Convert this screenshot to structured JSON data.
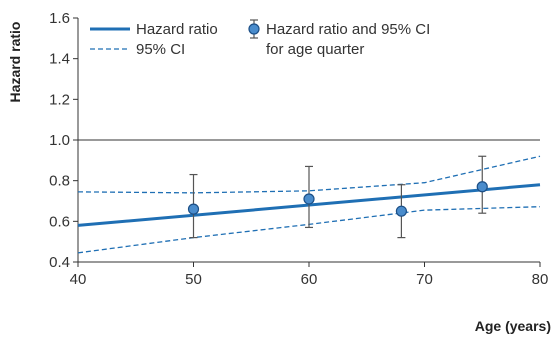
{
  "chart_data": {
    "type": "line",
    "xlabel": "Age (years)",
    "ylabel": "Hazard ratio",
    "xlim": [
      40,
      80
    ],
    "ylim": [
      0.4,
      1.6
    ],
    "x_ticks": [
      40,
      50,
      60,
      70,
      80
    ],
    "y_ticks": [
      "0.4",
      "0.6",
      "0.8",
      "1.0",
      "1.2",
      "1.4",
      "1.6"
    ],
    "reference_line": 1.0,
    "grid": false,
    "colors": {
      "line": "#1f6fb4",
      "point_fill": "#4a8ccc",
      "point_stroke": "#1c4f86",
      "errorbar": "#555555",
      "reference": "#333333",
      "axis": "#333333"
    },
    "series": [
      {
        "name": "Hazard ratio",
        "style": "solid",
        "x": [
          40,
          80
        ],
        "y": [
          0.58,
          0.78
        ]
      },
      {
        "name": "95% CI",
        "style": "dashed",
        "x": [
          40,
          50,
          60,
          70,
          80
        ],
        "y": [
          0.745,
          0.74,
          0.75,
          0.79,
          0.92
        ]
      },
      {
        "name": "95% CI",
        "style": "dashed",
        "x": [
          40,
          50,
          60,
          70,
          80
        ],
        "y": [
          0.445,
          0.52,
          0.585,
          0.655,
          0.672
        ]
      }
    ],
    "points": {
      "name": "Hazard ratio and 95% CI for age quarter",
      "x": [
        50,
        60,
        68,
        75
      ],
      "y": [
        0.66,
        0.71,
        0.65,
        0.77
      ],
      "lower": [
        0.52,
        0.57,
        0.52,
        0.64
      ],
      "upper": [
        0.83,
        0.87,
        0.78,
        0.92
      ]
    },
    "legend": {
      "placement": "top-left",
      "items": [
        {
          "label": "Hazard ratio",
          "kind": "solid-line"
        },
        {
          "label": "95% CI",
          "kind": "dashed-line"
        },
        {
          "label": "Hazard ratio and 95% CI",
          "label_line2": "for age quarter",
          "kind": "point-errorbar"
        }
      ]
    }
  }
}
